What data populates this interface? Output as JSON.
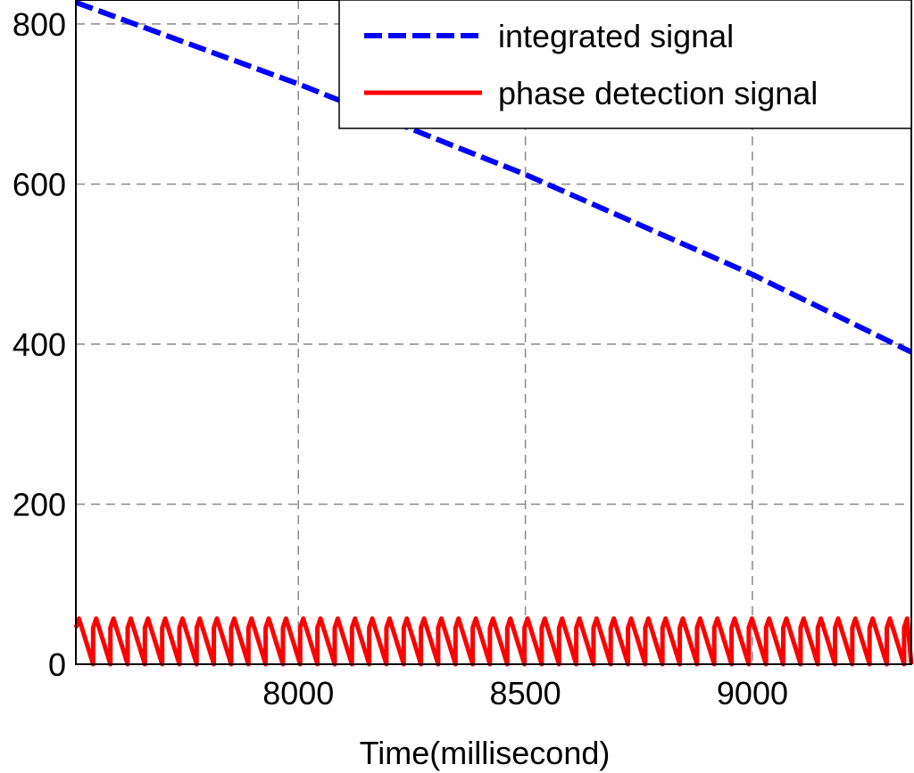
{
  "chart_data": {
    "type": "line",
    "title": "",
    "xlabel": "Time(millisecond)",
    "ylabel": "",
    "xlim": [
      7510,
      9350
    ],
    "ylim": [
      0,
      830
    ],
    "xticks": [
      8000,
      8500,
      9000
    ],
    "yticks": [
      0,
      200,
      400,
      600,
      800
    ],
    "xtick_labels": [
      "8000",
      "8500",
      "9000"
    ],
    "ytick_labels": [
      "0",
      "200",
      "400",
      "600",
      "800"
    ],
    "grid": true,
    "legend_position": "top-right",
    "series": [
      {
        "name": "integrated signal",
        "style": "dashed",
        "color": "#0000ff",
        "x": [
          7510,
          8000,
          8500,
          9000,
          9350
        ],
        "y": [
          827,
          725,
          612,
          487,
          390
        ]
      },
      {
        "name": "phase detection signal",
        "style": "solid",
        "color": "#ff0000",
        "kind": "sawtooth",
        "x_start": 7510,
        "x_end": 9350,
        "period": 38,
        "min": 0,
        "max": 57
      }
    ]
  }
}
